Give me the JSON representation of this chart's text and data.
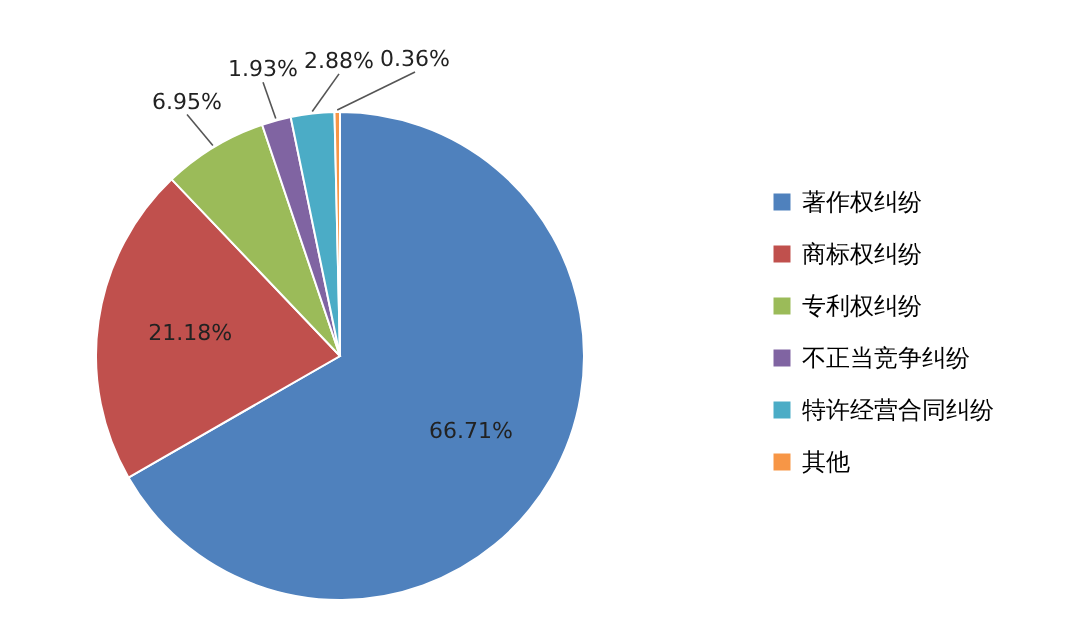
{
  "chart_data": {
    "type": "pie",
    "categories": [
      "著作权纠纷",
      "商标权纠纷",
      "专利权纠纷",
      "不正当竞争纠纷",
      "特许经营合同纠纷",
      "其他"
    ],
    "values": [
      66.71,
      21.18,
      6.95,
      1.93,
      2.88,
      0.36
    ],
    "colors": [
      "#4f81bd",
      "#c0504d",
      "#9bbb59",
      "#8064a2",
      "#4bacc6",
      "#f79646"
    ],
    "value_labels": [
      "66.71%",
      "21.18%",
      "6.95%",
      "1.93%",
      "2.88%",
      "0.36%"
    ],
    "legend": "right"
  }
}
